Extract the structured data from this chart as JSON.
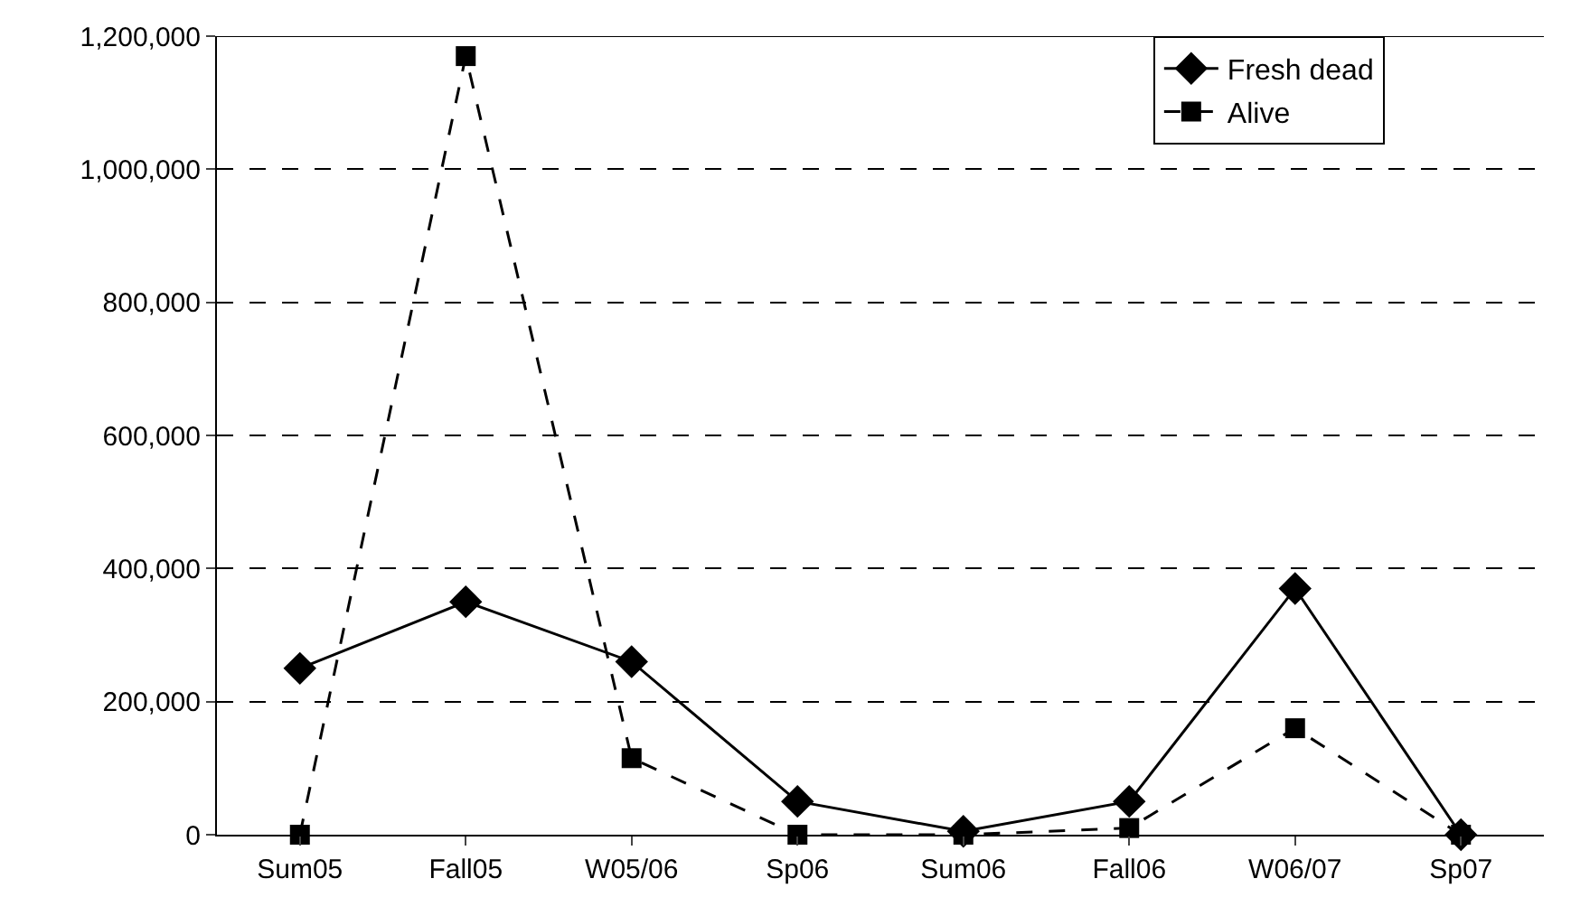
{
  "chart_data": {
    "type": "line",
    "categories": [
      "Sum05",
      "Fall05",
      "W05/06",
      "Sp06",
      "Sum06",
      "Fall06",
      "W06/07",
      "Sp07"
    ],
    "series": [
      {
        "name": "Fresh dead",
        "color": "#000000",
        "marker": "diamond",
        "line_style": "solid",
        "values": [
          250000,
          350000,
          260000,
          50000,
          5000,
          50000,
          370000,
          0
        ]
      },
      {
        "name": "Alive",
        "color": "#000000",
        "marker": "square",
        "line_style": "dashed",
        "values": [
          0,
          1170000,
          115000,
          0,
          0,
          10000,
          160000,
          0
        ]
      }
    ],
    "ylim": [
      0,
      1200000
    ],
    "yticks": [
      {
        "value": 0,
        "label": "0"
      },
      {
        "value": 200000,
        "label": "200,000"
      },
      {
        "value": 400000,
        "label": "400,000"
      },
      {
        "value": 600000,
        "label": "600,000"
      },
      {
        "value": 800000,
        "label": "800,000"
      },
      {
        "value": 1000000,
        "label": "1,000,000"
      },
      {
        "value": 1200000,
        "label": "1,200,000"
      }
    ],
    "grid": "y",
    "legend": "top right"
  }
}
